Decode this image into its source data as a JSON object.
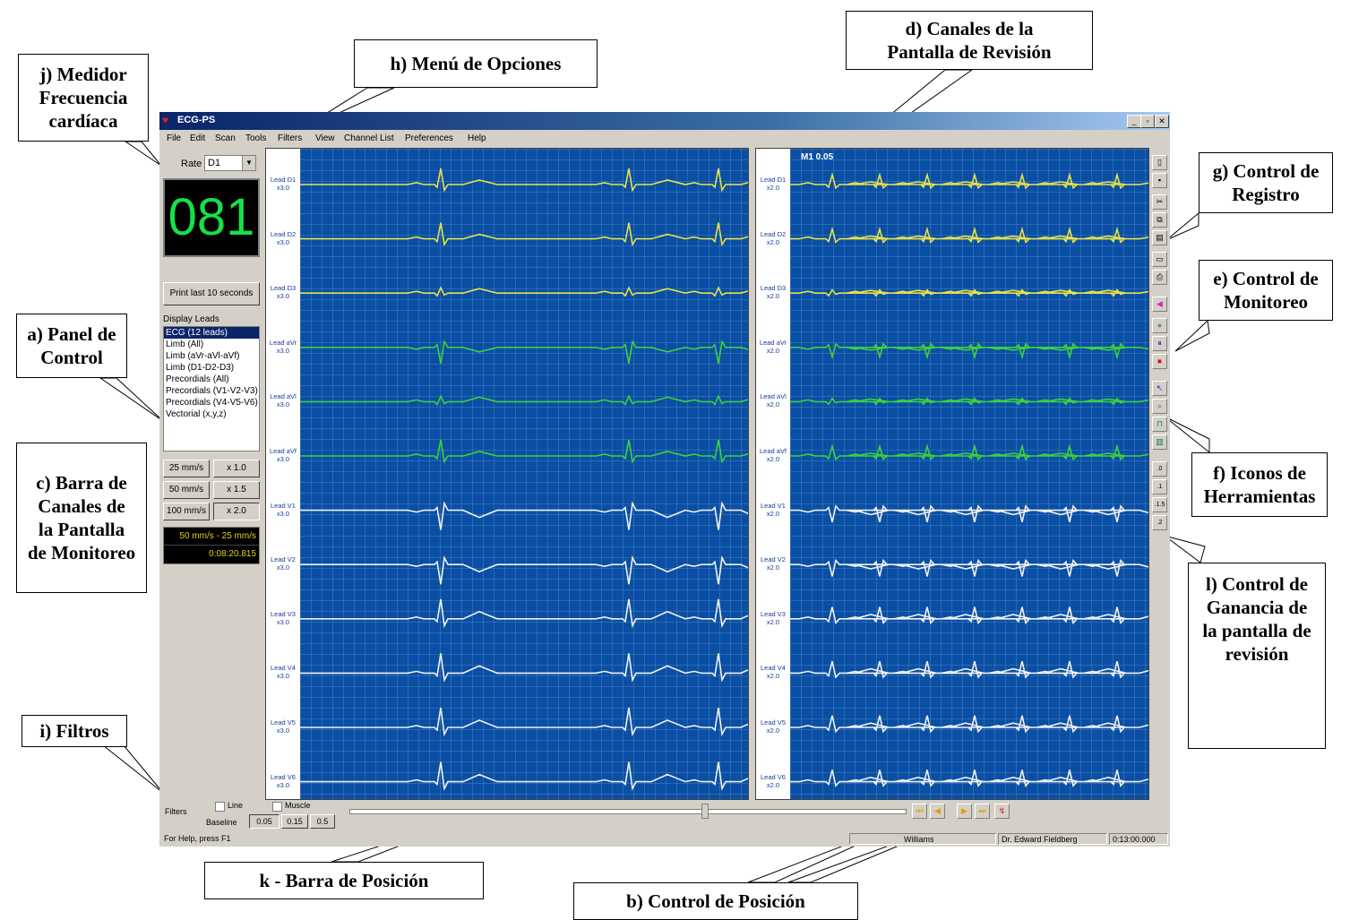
{
  "callouts": {
    "j": "j) Medidor\nFrecuencia\ncardíaca",
    "h": "h)   Menú de Opciones",
    "d": "d) Canales de la\nPantalla de Revisión",
    "g": "g) Control de\nRegistro",
    "e": "e) Control de\nMonitoreo",
    "a": "a) Panel de\nControl",
    "c": "c) Barra de\nCanales de\nla Pantalla\nde Monitoreo",
    "f": "f) Iconos de\nHerramientas",
    "l": "l) Control de\nGanancia de\nla pantalla de\nrevisión",
    "i": "i) Filtros",
    "k": "k - Barra de Posición",
    "b": "b) Control de Posición"
  },
  "window": {
    "title": "ECG-PS",
    "menu": [
      "File",
      "Edit",
      "Scan",
      "Tools",
      "Filters",
      "View",
      "Channel List",
      "Preferences",
      "Help"
    ]
  },
  "left_panel": {
    "rate_label": "Rate",
    "rate_value": "D1",
    "heart_rate": "081",
    "print_button": "Print last 10 seconds",
    "display_leads_label": "Display Leads",
    "display_leads": [
      "ECG (12 leads)",
      "Limb (All)",
      "Limb (aVr-aVl-aVf)",
      "Limb (D1-D2-D3)",
      "Precordials (All)",
      "Precordials (V1-V2-V3)",
      "Precordials (V4-V5-V6)",
      "Vectorial (x,y,z)"
    ],
    "speed_buttons": [
      "25 mm/s",
      "50 mm/s",
      "100 mm/s"
    ],
    "gain_buttons": [
      "x 1.0",
      "x 1.5",
      "x 2.0"
    ],
    "speed_readout": "50 mm/s - 25 mm/s",
    "time_readout": "0:08:20.815"
  },
  "monitor": {
    "leads": [
      "Lead D1 x3.0",
      "Lead D2 x3.0",
      "Lead D3 x3.0",
      "Lead aVr x3.0",
      "Lead aVl x3.0",
      "Lead aVf x3.0",
      "Lead V1 x3.0",
      "Lead V2 x3.0",
      "Lead V3 x3.0",
      "Lead V4 x3.0",
      "Lead V5 x3.0",
      "Lead V6 x3.0"
    ]
  },
  "review": {
    "marker": "M1 0.05",
    "leads": [
      "Lead D1 x2.0",
      "Lead D2 x2.0",
      "Lead D3 x2.0",
      "Lead aVr x2.0",
      "Lead aVl x2.0",
      "Lead aVf x2.0",
      "Lead V1 x2.0",
      "Lead V2 x2.0",
      "Lead V3 x2.0",
      "Lead V4 x2.0",
      "Lead V5 x2.0",
      "Lead V6 x2.0"
    ]
  },
  "gain_control": [
    ".0",
    ".1",
    ".1.5",
    ".2"
  ],
  "trace_colors": {
    "limb_upper": "#e8e24a",
    "limb_aug": "#3cd23c",
    "precordial": "#f0f0f0"
  },
  "filters": {
    "label": "Filters",
    "line": "Line",
    "muscle": "Muscle",
    "baseline_label": "Baseline",
    "baseline_options": [
      "0.05",
      "0.15",
      "0.5"
    ]
  },
  "status": {
    "help": "For Help, press F1",
    "patient": "Williams",
    "doctor": "Dr. Edward Fieldberg",
    "time": "0:13:00.000"
  }
}
